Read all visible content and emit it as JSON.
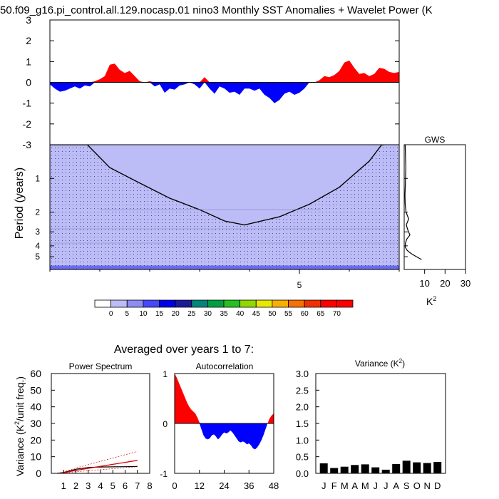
{
  "figure": {
    "title": "50.f09_g16.pi_control.all.129.nocasp.01 nino3 Monthly SST Anomalies + Wavelet Power (K",
    "subtitle": "Averaged over years 1 to 7:"
  },
  "colors": {
    "positive": "#ff0000",
    "negative": "#0000ff",
    "wavelet_base": "#bcbcf6",
    "wavelet_band": "#6a6af0",
    "spectrum_red": "#e00000",
    "bars": "#000000"
  },
  "chart_data": [
    {
      "id": "anomaly",
      "type": "area",
      "title": "",
      "ylim": [
        -3,
        3
      ],
      "yticks": [
        3,
        2,
        1,
        0,
        -1,
        -2,
        -3
      ],
      "xlim": [
        0,
        7
      ],
      "x": [
        0,
        0.1,
        0.2,
        0.3,
        0.4,
        0.5,
        0.6,
        0.7,
        0.8,
        0.9,
        1.0,
        1.1,
        1.2,
        1.3,
        1.4,
        1.5,
        1.6,
        1.7,
        1.8,
        1.9,
        2.0,
        2.1,
        2.2,
        2.3,
        2.4,
        2.5,
        2.6,
        2.7,
        2.8,
        2.9,
        3.0,
        3.1,
        3.2,
        3.3,
        3.4,
        3.5,
        3.6,
        3.7,
        3.8,
        3.9,
        4.0,
        4.1,
        4.2,
        4.3,
        4.4,
        4.5,
        4.6,
        4.7,
        4.8,
        4.9,
        5.0,
        5.1,
        5.2,
        5.3,
        5.4,
        5.5,
        5.6,
        5.7,
        5.8,
        5.9,
        6.0,
        6.1,
        6.2,
        6.3,
        6.4,
        6.5,
        6.6,
        6.7,
        6.8,
        6.9,
        7.0
      ],
      "values": [
        -0.1,
        -0.3,
        -0.45,
        -0.4,
        -0.3,
        -0.2,
        -0.3,
        -0.15,
        -0.2,
        0.05,
        0.15,
        0.3,
        0.85,
        0.9,
        0.6,
        0.45,
        0.55,
        0.3,
        0.05,
        0.0,
        0.05,
        -0.2,
        -0.1,
        -0.5,
        -0.3,
        -0.35,
        -0.15,
        -0.1,
        0.0,
        -0.1,
        -0.3,
        0.25,
        -0.3,
        -0.55,
        -0.2,
        -0.3,
        -0.5,
        -0.45,
        -0.6,
        -0.3,
        -0.3,
        -0.4,
        -0.3,
        -0.6,
        -0.75,
        -1.0,
        -0.85,
        -0.55,
        -0.45,
        -0.6,
        -0.5,
        -0.3,
        0.0,
        0.0,
        0.1,
        0.3,
        0.25,
        0.35,
        0.55,
        0.95,
        1.05,
        0.7,
        0.4,
        0.45,
        0.3,
        0.4,
        0.7,
        0.65,
        0.5,
        0.45,
        0.5
      ]
    },
    {
      "id": "wavelet",
      "type": "heatmap",
      "ylabel": "Period (years)",
      "yticks": [
        1,
        2,
        3,
        4,
        5
      ],
      "xticks": [
        5
      ],
      "xlim": [
        0,
        7
      ],
      "period_range": [
        0.5,
        6.5
      ],
      "cone": {
        "x": [
          0,
          0.75,
          1.2,
          1.8,
          2.4,
          3.0,
          3.5,
          3.9,
          4.6,
          5.2,
          5.8,
          6.4,
          6.65,
          6.7
        ],
        "period": [
          0.5,
          0.5,
          0.8,
          1.1,
          1.5,
          1.9,
          2.4,
          2.6,
          2.2,
          1.7,
          1.2,
          0.7,
          0.5,
          0.5
        ]
      },
      "band_period": 6.0
    },
    {
      "id": "colorbar",
      "type": "table",
      "labels": [
        "0",
        "5",
        "10",
        "15",
        "20",
        "25",
        "30",
        "35",
        "40",
        "45",
        "50",
        "55",
        "60",
        "65",
        "70"
      ],
      "colors": [
        "#ffffff",
        "#bcbcf6",
        "#8c8cf2",
        "#4646ff",
        "#0000e6",
        "#1a1a99",
        "#00877a",
        "#00a040",
        "#28c020",
        "#90d800",
        "#e8e800",
        "#f8b000",
        "#f87000",
        "#f03000",
        "#ff0000",
        "#ff0000"
      ]
    },
    {
      "id": "gws",
      "type": "line",
      "title": "GWS",
      "xlabel": "K2",
      "xticks": [
        "10",
        "20",
        "30"
      ],
      "xlim": [
        0,
        30
      ],
      "period": [
        0.5,
        0.8,
        1.1,
        1.4,
        1.7,
        2.0,
        2.3,
        2.6,
        2.9,
        3.2,
        3.5,
        3.8,
        4.1,
        4.4,
        4.7,
        5.0,
        5.3
      ],
      "power": [
        0.5,
        0.8,
        0.6,
        0.4,
        0.5,
        0.9,
        2.2,
        1.0,
        1.8,
        2.8,
        1.2,
        0.6,
        0.5,
        1.5,
        3.5,
        6.0,
        8.5
      ]
    },
    {
      "id": "power_spectrum",
      "type": "line",
      "title": "Power Spectrum",
      "ylabel": "Variance (K2/unit freq.)",
      "xticks": [
        "1",
        "2",
        "3",
        "4",
        "5",
        "6",
        "7",
        "8"
      ],
      "yticks": [
        "0",
        "10",
        "20",
        "30",
        "40",
        "50",
        "60"
      ],
      "xlim": [
        0,
        8
      ],
      "ylim": [
        0,
        60
      ],
      "series": [
        {
          "name": "spectrum",
          "x": [
            0.5,
            1,
            2,
            3,
            4,
            5,
            6,
            7
          ],
          "values": [
            0,
            0.5,
            2.5,
            3.5,
            3.8,
            3.9,
            4.0,
            4.1
          ]
        },
        {
          "name": "red-noise",
          "x": [
            0.5,
            1,
            2,
            3,
            4,
            5,
            6,
            7
          ],
          "values": [
            0,
            0.3,
            1.8,
            3.0,
            4.2,
            5.4,
            6.6,
            7.8
          ]
        },
        {
          "name": "lower 95%",
          "x": [
            0.5,
            1,
            2,
            3,
            4,
            5,
            6,
            7
          ],
          "values": [
            0,
            0.2,
            1.0,
            1.6,
            2.2,
            2.8,
            3.4,
            4.0
          ]
        },
        {
          "name": "upper 95%",
          "x": [
            0.5,
            1,
            2,
            3,
            4,
            5,
            6,
            7
          ],
          "values": [
            0,
            0.8,
            3.2,
            5.2,
            7.2,
            9.2,
            11.2,
            13.2
          ]
        }
      ]
    },
    {
      "id": "autocorrelation",
      "type": "area",
      "title": "Autocorrelation",
      "xticks": [
        "0",
        "12",
        "24",
        "36",
        "48"
      ],
      "yticks": [
        "1",
        "0",
        "-1"
      ],
      "xlim": [
        0,
        48
      ],
      "ylim": [
        -1,
        1
      ],
      "x": [
        0,
        1,
        2,
        3,
        4,
        5,
        6,
        7,
        8,
        9,
        10,
        11,
        12,
        13,
        14,
        15,
        16,
        17,
        18,
        19,
        20,
        21,
        22,
        23,
        24,
        25,
        26,
        27,
        28,
        29,
        30,
        31,
        32,
        33,
        34,
        35,
        36,
        37,
        38,
        39,
        40,
        41,
        42,
        43,
        44,
        45,
        46,
        47,
        48
      ],
      "values": [
        1.0,
        0.92,
        0.82,
        0.72,
        0.62,
        0.52,
        0.42,
        0.34,
        0.28,
        0.24,
        0.2,
        0.12,
        0.02,
        -0.12,
        -0.24,
        -0.3,
        -0.32,
        -0.3,
        -0.24,
        -0.22,
        -0.26,
        -0.32,
        -0.28,
        -0.22,
        -0.18,
        -0.2,
        -0.18,
        -0.14,
        -0.18,
        -0.24,
        -0.3,
        -0.36,
        -0.38,
        -0.36,
        -0.38,
        -0.42,
        -0.4,
        -0.44,
        -0.5,
        -0.52,
        -0.48,
        -0.42,
        -0.34,
        -0.24,
        -0.12,
        0.0,
        0.1,
        0.16,
        0.2
      ]
    },
    {
      "id": "variance",
      "type": "bar",
      "title": "Variance (K2)",
      "categories": [
        "J",
        "F",
        "M",
        "A",
        "M",
        "J",
        "J",
        "A",
        "S",
        "O",
        "N",
        "D"
      ],
      "values": [
        0.3,
        0.16,
        0.2,
        0.25,
        0.27,
        0.18,
        0.11,
        0.28,
        0.38,
        0.33,
        0.31,
        0.34
      ],
      "yticks": [
        "0.0",
        "0.5",
        "1.0",
        "1.5",
        "2.0",
        "2.5",
        "3.0"
      ],
      "ylim": [
        0,
        3
      ]
    }
  ]
}
